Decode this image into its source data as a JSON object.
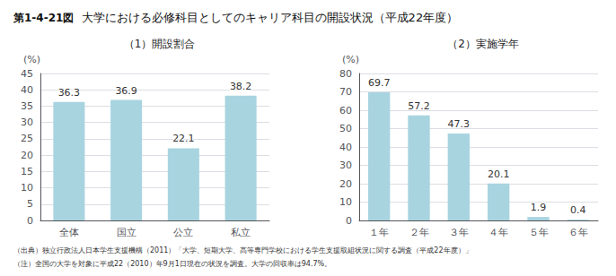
{
  "title": "大学における必修科目としてのキャリア科目の開設状況（平成22年度）",
  "annotations": [
    "第1-4-21図",
    "（出典）独立行政法人日本学生支援機構（2011）「大学、短期大学、高等専門学校における学生支援取組状況に関する調査（平成22年度）」",
    "（注）全国の大学を対象に平成22（2010）年9月1日現在の状況を調査。大学の回収率は94.7%。"
  ],
  "chart_data": [
    {
      "type": "bar",
      "title": "（1）開設割合",
      "ylabel": "(%)",
      "categories": [
        "全体",
        "国立",
        "公立",
        "私立"
      ],
      "values": [
        36.3,
        36.9,
        22.1,
        38.2
      ],
      "color": "#a8d4e0",
      "ylim": [
        0,
        45
      ],
      "yticks": [
        0,
        5,
        10,
        15,
        20,
        25,
        30,
        35,
        40,
        45
      ],
      "grid": true,
      "data_labels": true
    },
    {
      "type": "bar",
      "title": "（2）実施学年",
      "ylabel": "(%)",
      "categories": [
        "１年",
        "２年",
        "３年",
        "４年",
        "５年",
        "６年"
      ],
      "values": [
        69.7,
        57.2,
        47.3,
        20.1,
        1.9,
        0.4
      ],
      "color": "#a8d4e0",
      "ylim": [
        0,
        80
      ],
      "yticks": [
        0,
        10,
        20,
        30,
        40,
        50,
        60,
        70,
        80
      ],
      "grid": true,
      "data_labels": true
    }
  ]
}
